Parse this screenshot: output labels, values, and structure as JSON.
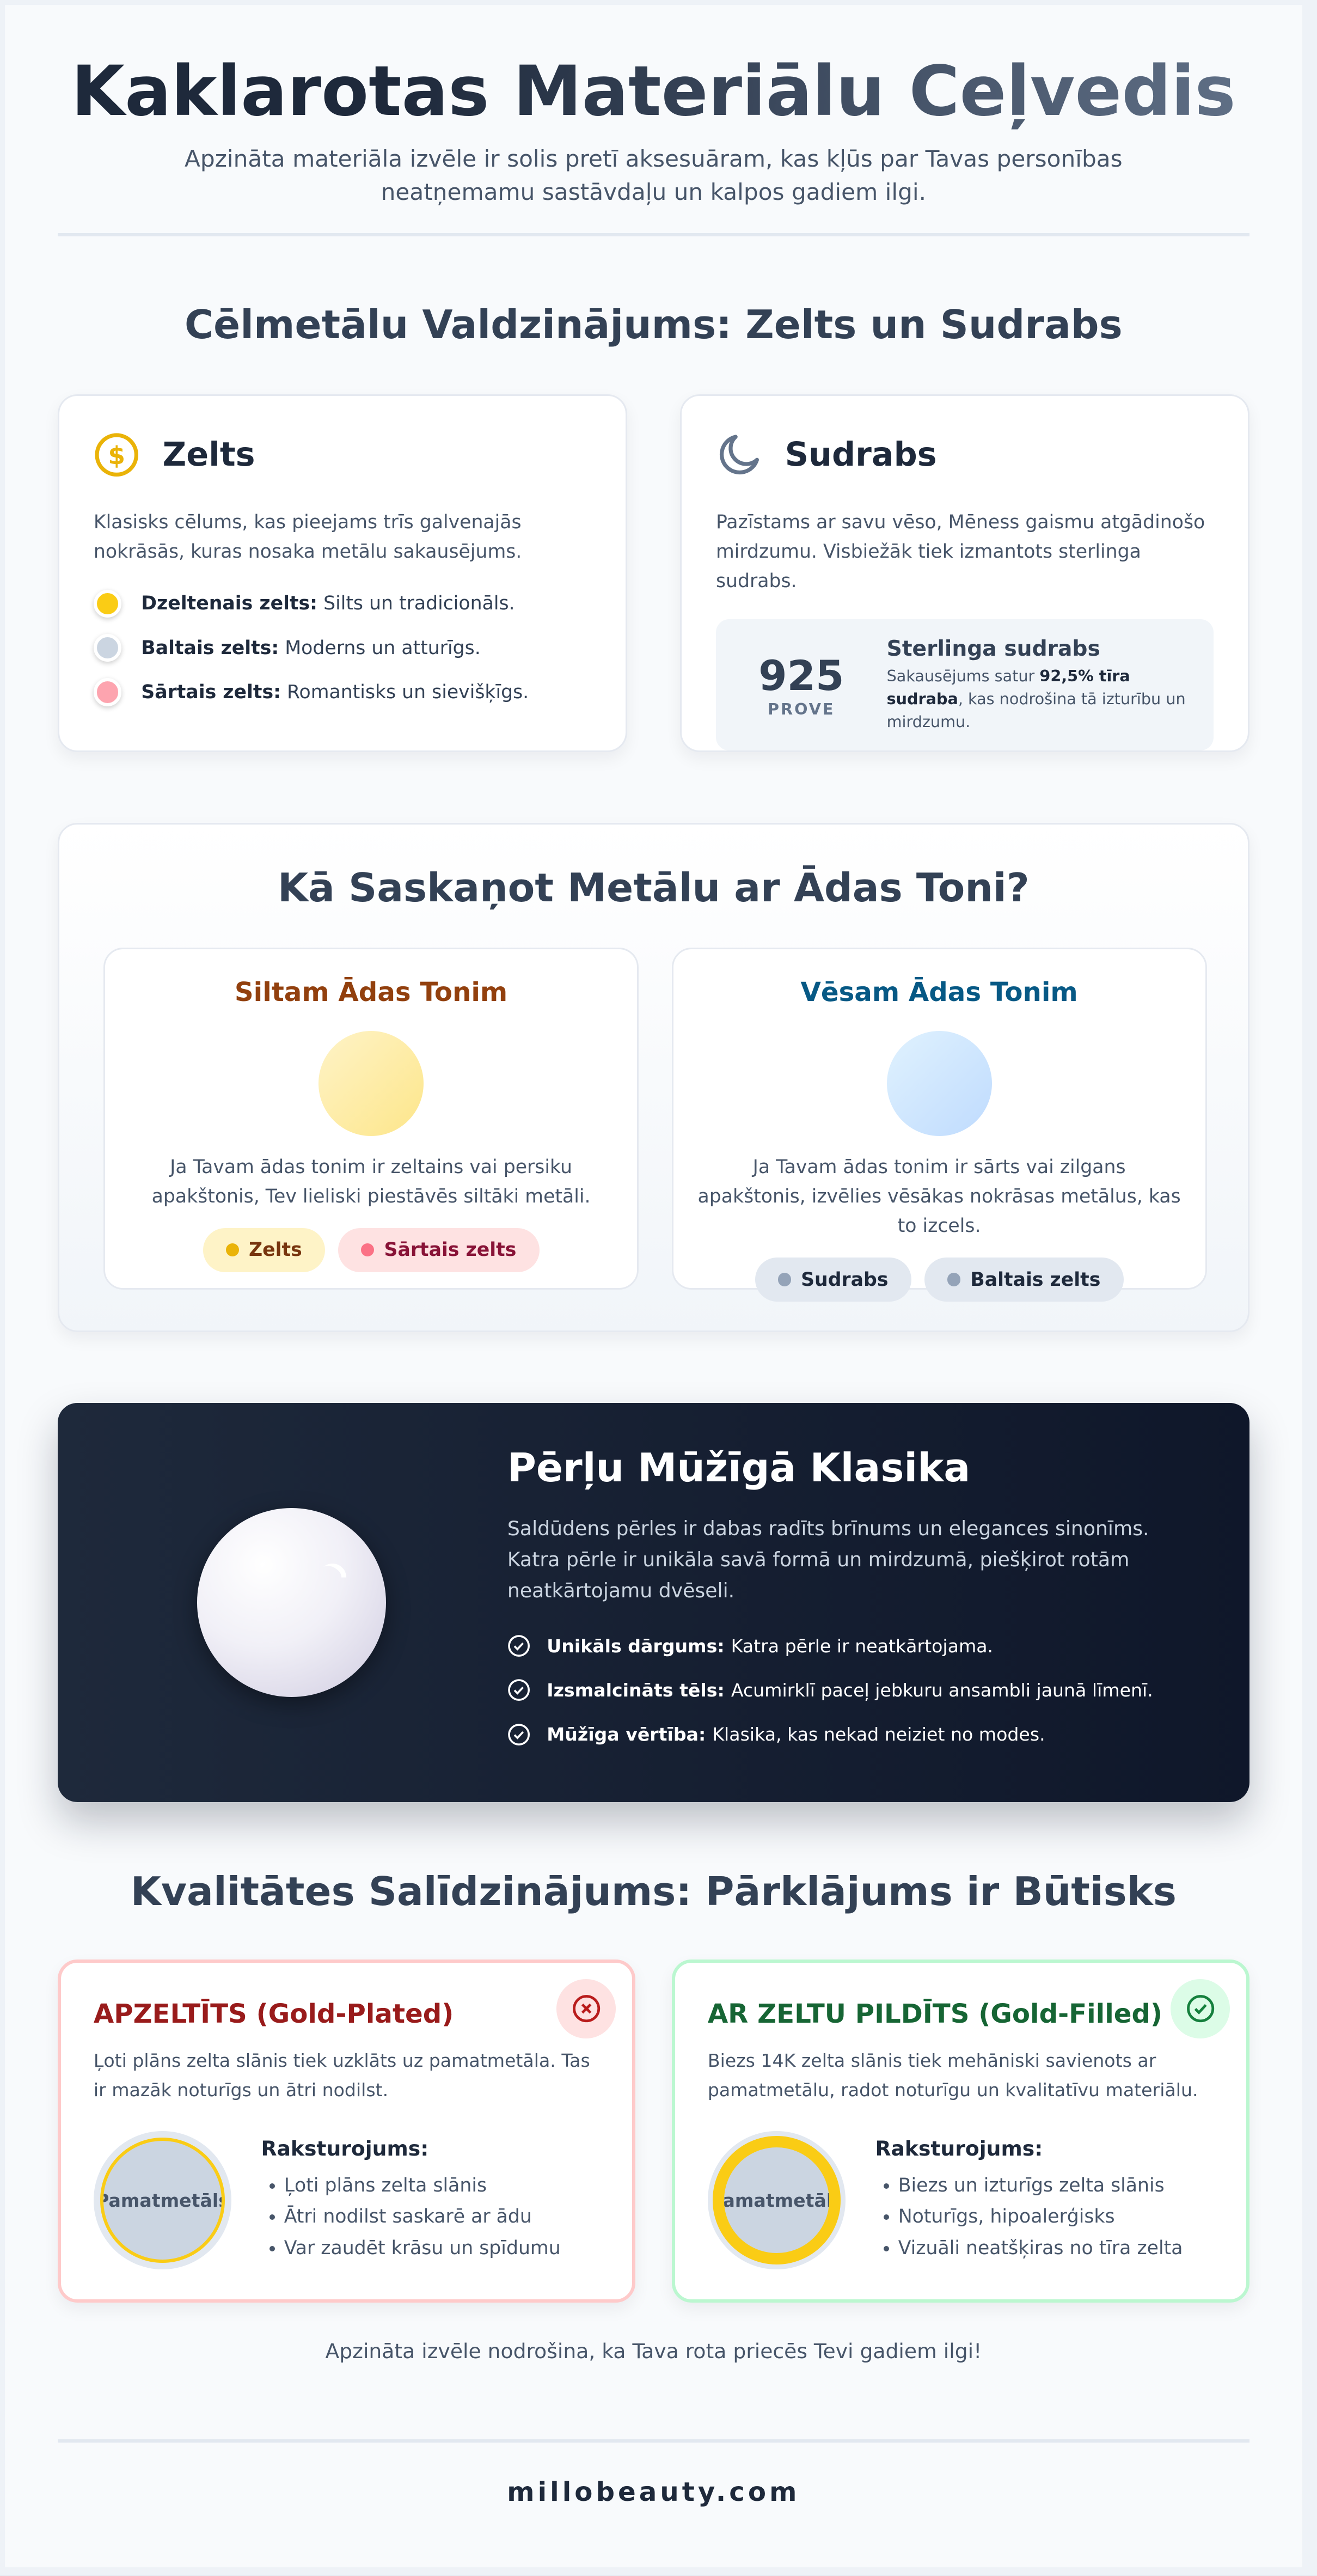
{
  "header": {
    "title": "Kaklarotas Materiālu Ceļvedis",
    "subtitle": "Apzināta materiāla izvēle ir solis pretī aksesuāram, kas kļūs par Tavas personības neatņemamu sastāvdaļu un kalpos gadiem ilgi."
  },
  "metals": {
    "heading": "Cēlmetālu Valdzinājums: Zelts un Sudrabs",
    "gold": {
      "icon": "dollar-coin-icon",
      "title": "Zelts",
      "desc": "Klasisks cēlums, kas pieejams trīs galvenajās nokrāsās, kuras nosaka metālu sakausējums.",
      "items": [
        {
          "label": "Dzeltenais zelts:",
          "text": " Silts un tradicionāls.",
          "color": "#facc15"
        },
        {
          "label": "Baltais zelts:",
          "text": " Moderns un atturīgs.",
          "color": "#cbd5e1"
        },
        {
          "label": "Sārtais zelts:",
          "text": " Romantisks un sievišķīgs.",
          "color": "#fda4af"
        }
      ]
    },
    "silver": {
      "icon": "moon-icon",
      "title": "Sudrabs",
      "desc": "Pazīstams ar savu vēso, Mēness gaismu atgādinošo mirdzumu. Visbiežāk tiek izmantots sterlinga sudrabs.",
      "badge_number": "925",
      "badge_label": "PROVE",
      "box_title": "Sterlinga sudrabs",
      "box_pre": "Sakausējums satur ",
      "box_bold": "92,5% tīra sudraba",
      "box_post": ", kas nodrošina tā izturību un mirdzumu."
    }
  },
  "skin": {
    "heading": "Kā Saskaņot Metālu ar Ādas Toni?",
    "warm": {
      "title": "Siltam Ādas Tonim",
      "desc": "Ja Tavam ādas tonim ir zeltains vai persiku apakštonis, Tev lieliski piestāvēs siltāki metāli.",
      "tags": [
        "Zelts",
        "Sārtais zelts"
      ],
      "color": "#92400e"
    },
    "cool": {
      "title": "Vēsam Ādas Tonim",
      "desc": "Ja Tavam ādas tonim ir sārts vai zilgans apakštonis, izvēlies vēsākas nokrāsas metālus, kas to izcels.",
      "tags": [
        "Sudrabs",
        "Baltais zelts"
      ],
      "color": "#075985"
    }
  },
  "pearls": {
    "title": "Pērļu Mūžīgā Klasika",
    "desc": "Saldūdens pērles ir dabas radīts brīnums un elegances sinonīms. Katra pērle ir unikāla savā formā un mirdzumā, piešķirot rotām neatkārtojamu dvēseli.",
    "features": [
      {
        "label": "Unikāls dārgums:",
        "text": "Katra pērle ir neatkārtojama."
      },
      {
        "label": "Izsmalcināts tēls:",
        "text": "Acumirklī paceļ jebkuru ansambli jaunā līmenī."
      },
      {
        "label": "Mūžīga vērtība:",
        "text": "Klasika, kas nekad neiziet no modes."
      }
    ]
  },
  "quality": {
    "heading": "Kvalitātes Salīdzinājums: Pārklājums ir Būtisks",
    "plated": {
      "title": "APZELTĪTS (Gold-Plated)",
      "icon": "x-circle-icon",
      "desc": "Ļoti plāns zelta slānis tiek uzklāts uz pamatmetāla. Tas ir mazāk noturīgs un ātri nodilst.",
      "core": "Pamatmetāls",
      "list_title": "Raksturojums:",
      "items": [
        "Ļoti plāns zelta slānis",
        "Ātri nodilst saskarē ar ādu",
        "Var zaudēt krāsu un spīdumu"
      ],
      "color": "#991b1b"
    },
    "filled": {
      "title": "AR ZELTU PILDĪTS (Gold-Filled)",
      "icon": "check-circle-icon",
      "desc": "Biezs 14K zelta slānis tiek mehāniski savienots ar pamatmetālu, radot noturīgu un kvalitatīvu materiālu.",
      "core": "Pamatmetāls",
      "list_title": "Raksturojums:",
      "items": [
        "Biezs un izturīgs zelta slānis",
        "Noturīgs, hipoalerģisks",
        "Vizuāli neatšķiras no tīra zelta"
      ],
      "color": "#166534"
    }
  },
  "footer": {
    "note": "Apzināta izvēle nodrošina, ka Tava rota priecēs Tevi gadiem ilgi!",
    "brand": "millobeauty.com"
  }
}
